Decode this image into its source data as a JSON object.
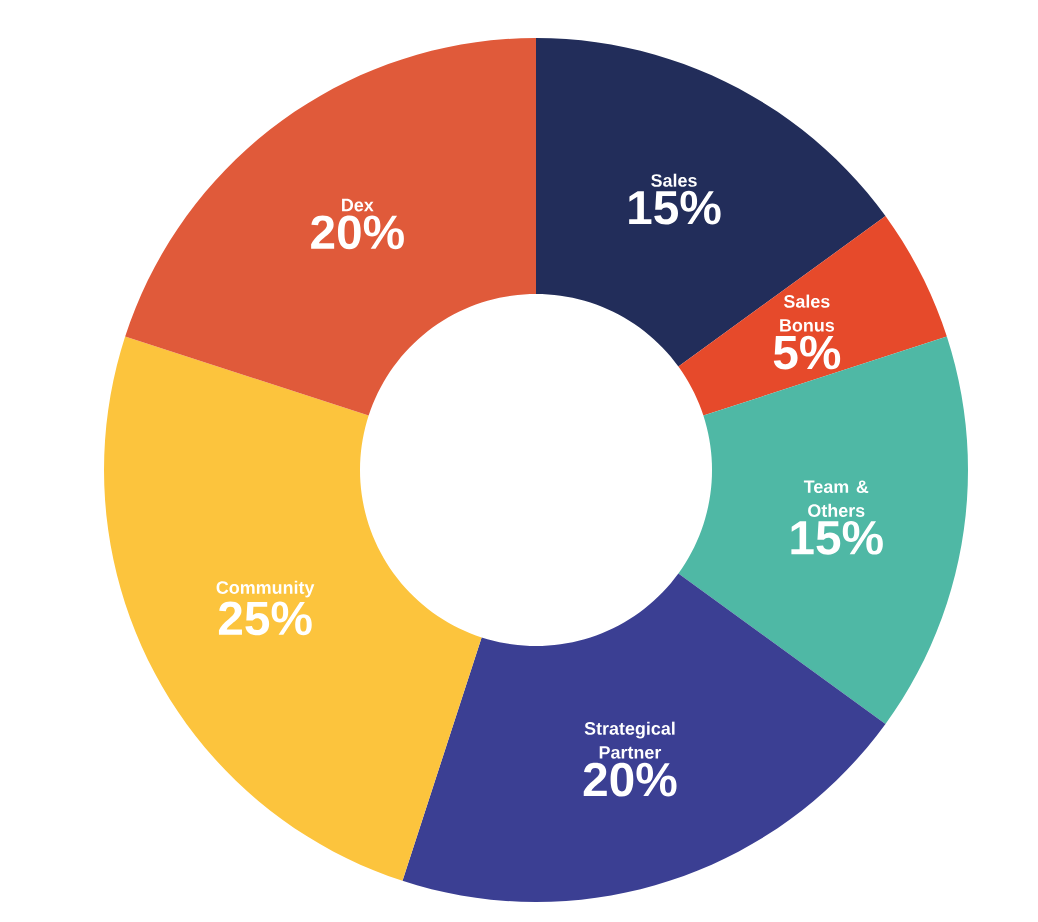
{
  "chart_data": {
    "type": "donut",
    "categories": [
      "Sales",
      "Sales Bonus",
      "Team & Others",
      "Strategical Partner",
      "Community",
      "Dex"
    ],
    "values": [
      15,
      5,
      15,
      20,
      25,
      20
    ],
    "colors": [
      "#222d5a",
      "#e64a2b",
      "#4fb8a5",
      "#3b3f93",
      "#fcc43d",
      "#e05a3a"
    ],
    "value_labels": [
      "15%",
      "5%",
      "15%",
      "20%",
      "25%",
      "20%"
    ]
  }
}
